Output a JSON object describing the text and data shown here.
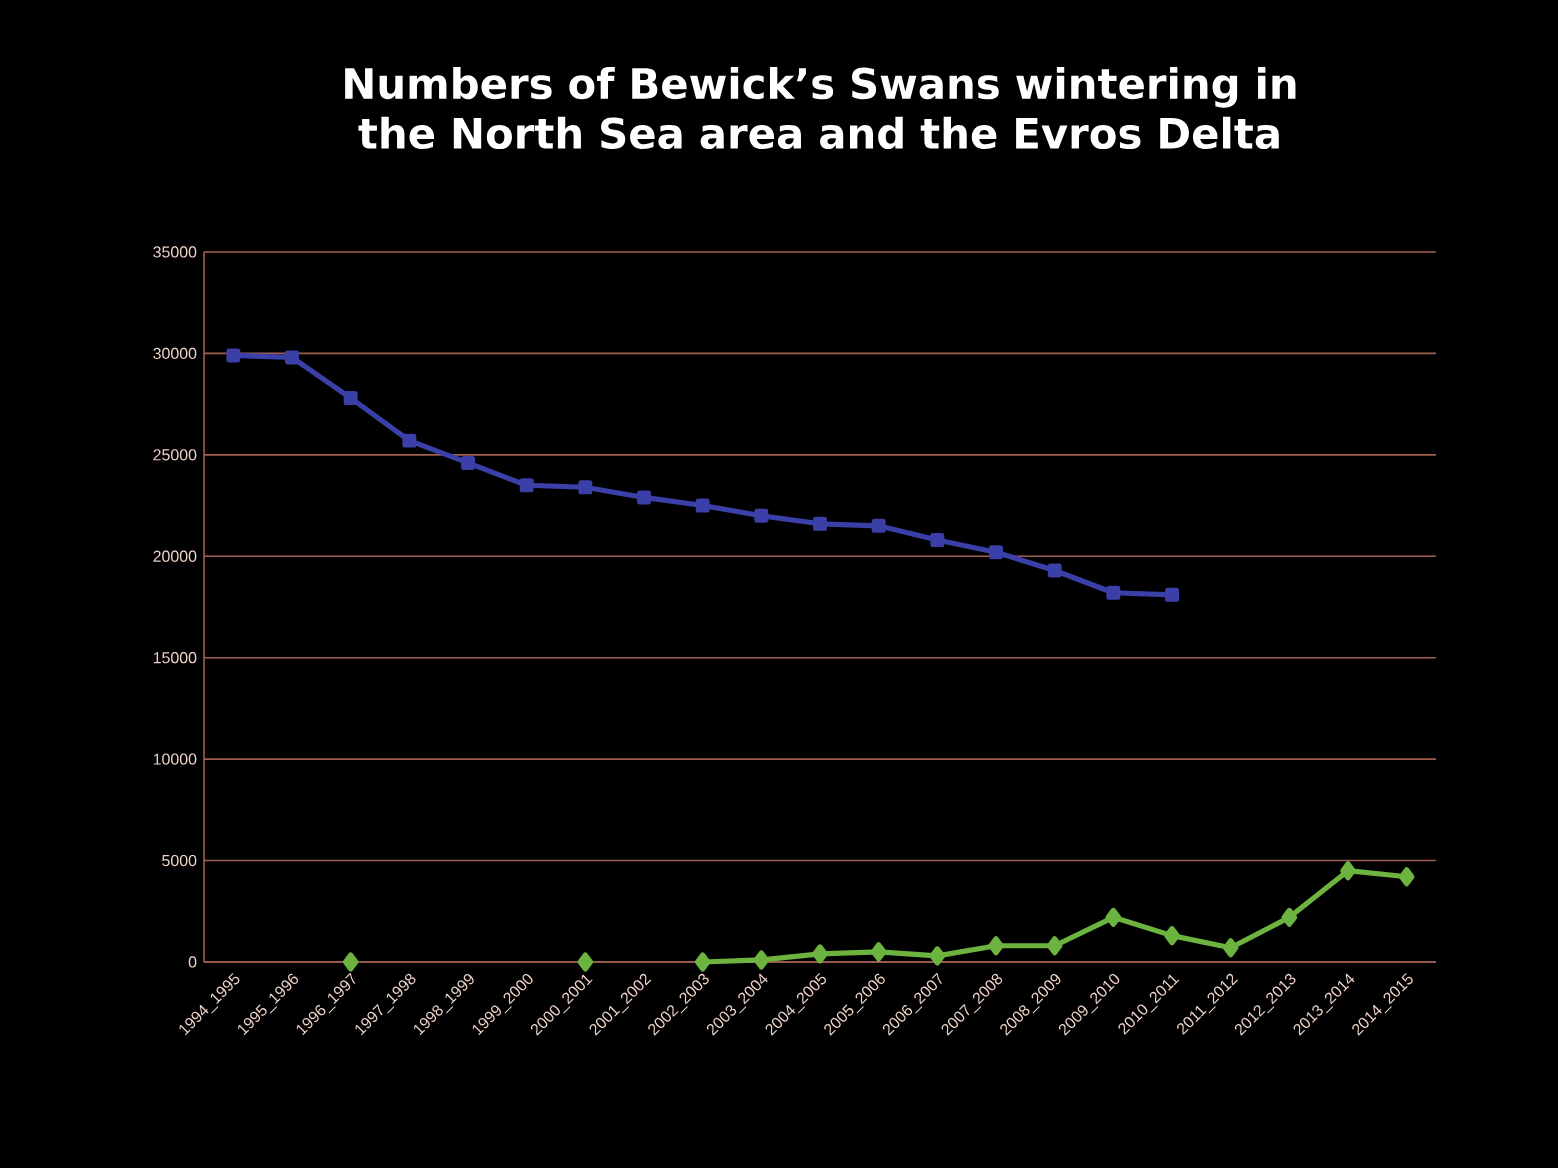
{
  "chart_data": {
    "type": "line",
    "title": "Numbers of Bewick’s Swans wintering in the North Sea area and the Evros Delta",
    "categories": [
      "1994_1995",
      "1995_1996",
      "1996_1997",
      "1997_1998",
      "1998_1999",
      "1999_2000",
      "2000_2001",
      "2001_2002",
      "2002_2003",
      "2003_2004",
      "2004_2005",
      "2005_2006",
      "2006_2007",
      "2007_2008",
      "2008_2009",
      "2009_2010",
      "2010_2011",
      "2011_2012",
      "2012_2013",
      "2013_2014",
      "2014_2015"
    ],
    "series": [
      {
        "color": "#3b3fa8",
        "marker": "square",
        "values": [
          29900,
          29800,
          27800,
          25700,
          24600,
          23500,
          23400,
          22900,
          22500,
          22000,
          21600,
          21500,
          20800,
          20200,
          19300,
          18200,
          18100,
          null,
          null,
          null,
          null
        ]
      },
      {
        "color": "#6cb33f",
        "marker": "diamond",
        "values": [
          null,
          null,
          0,
          null,
          null,
          null,
          0,
          null,
          0,
          100,
          400,
          500,
          300,
          800,
          800,
          2200,
          1300,
          700,
          2200,
          4500,
          4200
        ]
      }
    ],
    "ylim": [
      0,
      35000
    ],
    "yticks": [
      0,
      5000,
      10000,
      15000,
      20000,
      25000,
      30000,
      35000
    ],
    "grid": "y"
  }
}
